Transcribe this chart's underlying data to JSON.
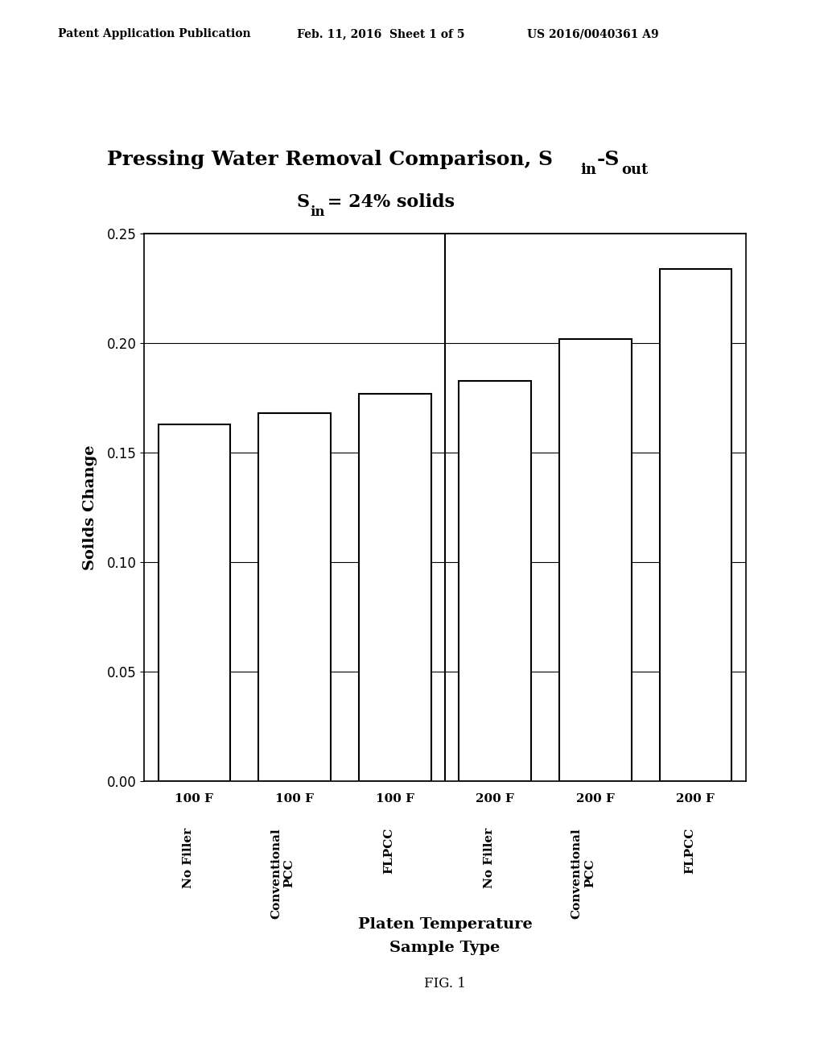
{
  "title_line1_main": "Pressing Water Removal Comparison, S",
  "title_line1_sub1": "in",
  "title_line1_mid": "-S",
  "title_line1_sub2": "out",
  "title_line2_s": "S",
  "title_line2_sub": "in",
  "title_line2_rest": " = 24% solids",
  "header_left": "Patent Application Publication",
  "header_mid": "Feb. 11, 2016  Sheet 1 of 5",
  "header_right": "US 2016/0040361 A9",
  "temp_labels": [
    "100 F",
    "100 F",
    "100 F",
    "200 F",
    "200 F",
    "200 F"
  ],
  "type_labels": [
    "No Filler",
    "Conventional\nPCC",
    "FLPCC",
    "No Filler",
    "Conventional\nPCC",
    "FLPCC"
  ],
  "values": [
    0.163,
    0.168,
    0.177,
    0.183,
    0.202,
    0.234
  ],
  "ylabel": "Soilds Change",
  "xlabel_line1": "Platen Temperature",
  "xlabel_line2": "Sample Type",
  "fig_label": "FIG. 1",
  "ylim": [
    0.0,
    0.25
  ],
  "yticks": [
    0.0,
    0.05,
    0.1,
    0.15,
    0.2,
    0.25
  ],
  "bar_color": "#ffffff",
  "bar_edge_color": "#000000",
  "background_color": "#ffffff",
  "grid_color": "#000000",
  "header_fontsize": 10,
  "title1_fontsize": 18,
  "title2_fontsize": 16,
  "ylabel_fontsize": 14,
  "xlabel_fontsize": 14,
  "tick_fontsize": 11,
  "figlabel_fontsize": 12
}
